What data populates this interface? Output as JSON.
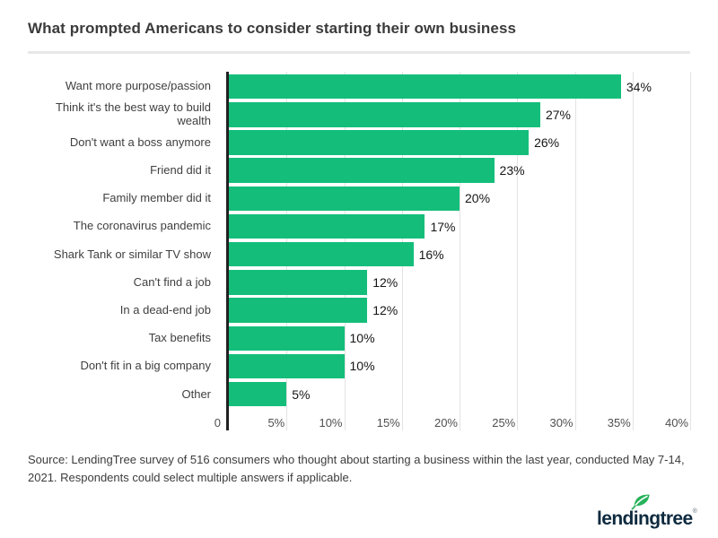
{
  "page": {
    "title": "What prompted Americans to consider starting their own business",
    "source_text": "Source: LendingTree survey of 516 consumers who thought about starting a business within the last year, conducted May 7-14, 2021. Respondents could select multiple answers if applicable.",
    "logo": {
      "brand": "lendingtree",
      "trademark": "®"
    }
  },
  "colors": {
    "bar_green": "#14be7a",
    "leaf_green": "#27b35b",
    "logo_navy": "#0e2a3f",
    "axis_line": "#212121",
    "gridline": "#e3e3e3",
    "divider": "#e8e8e8"
  },
  "chart_data": {
    "type": "bar",
    "orientation": "horizontal",
    "title": "What prompted Americans to consider starting their own business",
    "categories": [
      "Want more purpose/passion",
      "Think it's the best way to build wealth",
      "Don't want a boss anymore",
      "Friend did it",
      "Family member did it",
      "The coronavirus pandemic",
      "Shark Tank or similar TV show",
      "Can't find a job",
      "In a dead-end job",
      "Tax benefits",
      "Don't fit in a big company",
      "Other"
    ],
    "values": [
      34,
      27,
      26,
      23,
      20,
      17,
      16,
      12,
      12,
      10,
      10,
      5
    ],
    "value_labels": [
      "34%",
      "27%",
      "26%",
      "23%",
      "20%",
      "17%",
      "16%",
      "12%",
      "12%",
      "10%",
      "10%",
      "5%"
    ],
    "x_ticks": [
      {
        "value": 0,
        "label": "0"
      },
      {
        "value": 5,
        "label": "5%"
      },
      {
        "value": 10,
        "label": "10%"
      },
      {
        "value": 15,
        "label": "15%"
      },
      {
        "value": 20,
        "label": "20%"
      },
      {
        "value": 25,
        "label": "25%"
      },
      {
        "value": 30,
        "label": "30%"
      },
      {
        "value": 35,
        "label": "35%"
      },
      {
        "value": 40,
        "label": "40%"
      }
    ],
    "xlim": [
      0,
      40
    ],
    "xlabel": "",
    "ylabel": "",
    "grid": "vertical gridlines at 5% intervals",
    "legend": "none",
    "bar_color": "#14be7a"
  }
}
